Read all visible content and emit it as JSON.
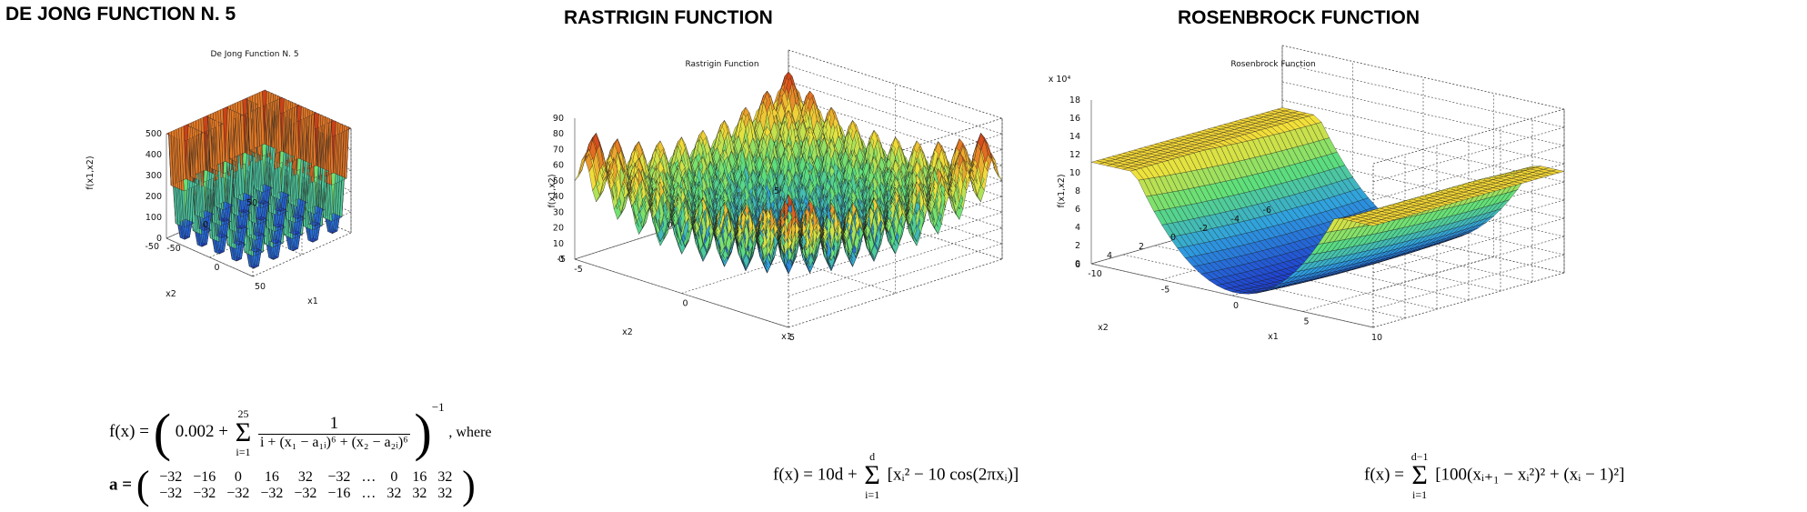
{
  "panels": [
    {
      "heading": "DE JONG FUNCTION N. 5",
      "chart_title": "De Jong Function N. 5",
      "zlabel": "f(x1,x2)",
      "xlabel": "x1",
      "ylabel": "x2",
      "z_ticks": [
        "0",
        "100",
        "200",
        "300",
        "400",
        "500"
      ],
      "x_ticks": [
        "-50",
        "0",
        "50"
      ],
      "y_ticks": [
        "-50",
        "0",
        "50"
      ],
      "formula": {
        "lhs": "f(x) =",
        "const": "0.002 +",
        "sum_upper": "25",
        "sum_lower": "i=1",
        "numerator": "1",
        "denominator": "i + (x₁ − a₁ᵢ)⁶ + (x₂ − a₂ᵢ)⁶",
        "power": "−1",
        "where": ", where",
        "a_lhs": "a =",
        "a_row1": [
          "−32",
          "−16",
          "0",
          "16",
          "32",
          "−32",
          "…",
          "0",
          "16",
          "32"
        ],
        "a_row2": [
          "−32",
          "−32",
          "−32",
          "−32",
          "−32",
          "−16",
          "…",
          "32",
          "32",
          "32"
        ]
      }
    },
    {
      "heading": "RASTRIGIN FUNCTION",
      "chart_title": "Rastrigin Function",
      "zlabel": "f(x1,x2)",
      "xlabel": "x1",
      "ylabel": "x2",
      "z_ticks": [
        "0",
        "10",
        "20",
        "30",
        "40",
        "50",
        "60",
        "70",
        "80",
        "90"
      ],
      "x_ticks": [
        "-5",
        "0",
        "5"
      ],
      "y_ticks": [
        "-5",
        "0",
        "5"
      ],
      "formula": {
        "lhs": "f(x) = 10d +",
        "sum_upper": "d",
        "sum_lower": "i=1",
        "body": "[xᵢ² − 10 cos(2πxᵢ)]"
      }
    },
    {
      "heading": "ROSENBROCK FUNCTION",
      "chart_title": "Rosenbrock Function",
      "zlabel": "f(x1,x2)",
      "xlabel": "x1",
      "ylabel": "x2",
      "z_multiplier": "x 10⁴",
      "z_ticks": [
        "0",
        "2",
        "4",
        "6",
        "8",
        "10",
        "12",
        "14",
        "16",
        "18"
      ],
      "x_ticks": [
        "-10",
        "-5",
        "0",
        "5",
        "10"
      ],
      "y_ticks": [
        "-6",
        "-4",
        "-2",
        "0",
        "2",
        "4",
        "6"
      ],
      "formula": {
        "lhs": "f(x) =",
        "sum_upper": "d−1",
        "sum_lower": "i=1",
        "body": "[100(xᵢ₊₁ − xᵢ²)² + (xᵢ − 1)²]"
      }
    }
  ],
  "chart_data": [
    {
      "type": "surface",
      "title": "De Jong Function N. 5",
      "xlabel": "x1",
      "ylabel": "x2",
      "zlabel": "f(x1,x2)",
      "xlim": [
        -50,
        50
      ],
      "ylim": [
        -50,
        50
      ],
      "zlim": [
        0,
        500
      ],
      "grid": true,
      "colormap": [
        "#1f3fd0",
        "#2fa0e0",
        "#5fe07a",
        "#f2e23a",
        "#e25a1e",
        "#a21a12"
      ]
    },
    {
      "type": "surface",
      "title": "Rastrigin Function",
      "xlabel": "x1",
      "ylabel": "x2",
      "zlabel": "f(x1,x2)",
      "xlim": [
        -5,
        5
      ],
      "ylim": [
        -5,
        5
      ],
      "zlim": [
        0,
        90
      ],
      "grid": true,
      "colormap": [
        "#1f3fd0",
        "#2fa0e0",
        "#5fe07a",
        "#f2e23a",
        "#e25a1e",
        "#a21a12"
      ]
    },
    {
      "type": "surface",
      "title": "Rosenbrock Function",
      "xlabel": "x1",
      "ylabel": "x2",
      "zlabel": "f(x1,x2)",
      "xlim": [
        -10,
        10
      ],
      "ylim": [
        -6,
        6
      ],
      "zlim": [
        0,
        18
      ],
      "z_multiplier": "x 10^4",
      "grid": true,
      "colormap": [
        "#1f3fd0",
        "#2fa0e0",
        "#5fe07a",
        "#f2e23a",
        "#e25a1e",
        "#a21a12"
      ]
    }
  ]
}
